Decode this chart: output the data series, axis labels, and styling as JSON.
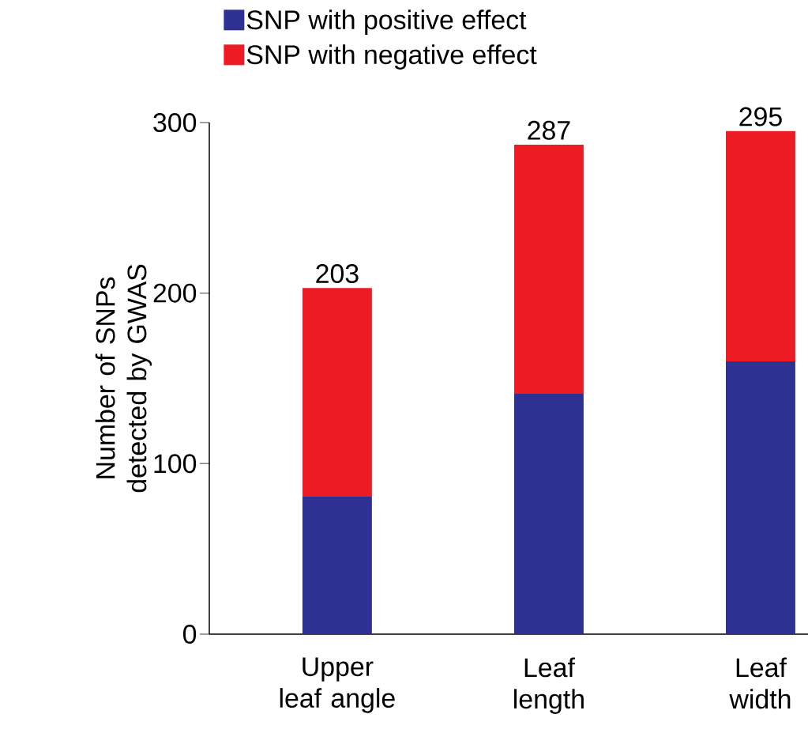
{
  "chart_data": {
    "type": "bar",
    "stacked": true,
    "ylabel": "Number of SNPs detected by GWAS",
    "categories": [
      "Upper leaf angle",
      "Leaf length",
      "Leaf width"
    ],
    "series": [
      {
        "name": "SNP with positive effect",
        "color": "#2e3192",
        "values": [
          81,
          141,
          160
        ]
      },
      {
        "name": "SNP with negative effect",
        "color": "#ed1c24",
        "values": [
          122,
          146,
          135
        ]
      }
    ],
    "totals": [
      "203",
      "287",
      "295"
    ],
    "ylim": [
      0,
      300
    ],
    "yticks": [
      0,
      100,
      200,
      300
    ],
    "grid": false,
    "legend": "top left"
  }
}
